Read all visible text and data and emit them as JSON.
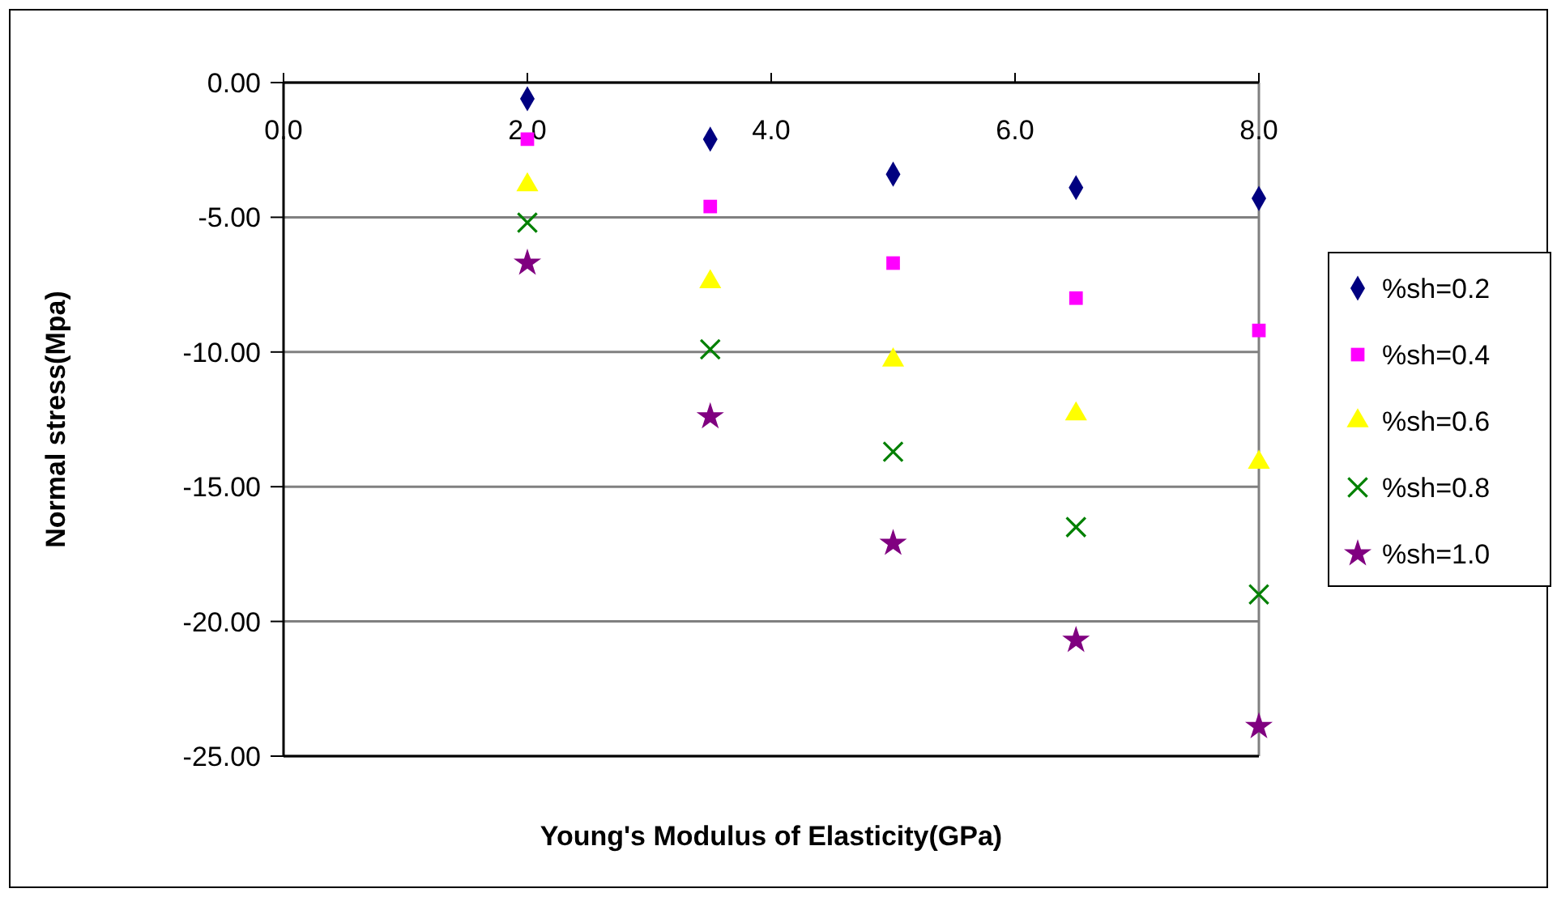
{
  "chart_data": {
    "type": "scatter",
    "xlabel": "Young's Modulus of Elasticity(GPa)",
    "ylabel": "Normal stress(Mpa)",
    "xlim": [
      0,
      8
    ],
    "xticks": [
      {
        "value": 0,
        "label": "0.0"
      },
      {
        "value": 2,
        "label": "2.0"
      },
      {
        "value": 4,
        "label": "4.0"
      },
      {
        "value": 6,
        "label": "6.0"
      },
      {
        "value": 8,
        "label": "8.0"
      }
    ],
    "ylim": [
      -25,
      0
    ],
    "yticks": [
      {
        "value": -25,
        "label": "-25.00"
      },
      {
        "value": -20,
        "label": "-20.00"
      },
      {
        "value": -15,
        "label": "-15.00"
      },
      {
        "value": -10,
        "label": "-10.00"
      },
      {
        "value": -5,
        "label": "-5.00"
      },
      {
        "value": 0,
        "label": "0.00"
      }
    ],
    "grid": "y",
    "legend": "right",
    "x": [
      2,
      3.5,
      5,
      6.5,
      8
    ],
    "series": [
      {
        "name": "%sh=0.2",
        "color": "#000080",
        "marker": "diamond",
        "values": [
          -0.6,
          -2.1,
          -3.4,
          -3.9,
          -4.3
        ]
      },
      {
        "name": "%sh=0.4",
        "color": "#ff00ff",
        "marker": "square",
        "values": [
          -2.1,
          -4.6,
          -6.7,
          -8.0,
          -9.2
        ]
      },
      {
        "name": "%sh=0.6",
        "color": "#ffff00",
        "marker": "triangle",
        "values": [
          -3.8,
          -7.4,
          -10.3,
          -12.3,
          -14.1
        ]
      },
      {
        "name": "%sh=0.8",
        "color": "#008000",
        "marker": "cross",
        "values": [
          -5.2,
          -9.9,
          -13.7,
          -16.5,
          -19.0
        ]
      },
      {
        "name": "%sh=1.0",
        "color": "#800080",
        "marker": "star",
        "values": [
          -6.7,
          -12.4,
          -17.1,
          -20.7,
          -23.9
        ]
      }
    ]
  }
}
